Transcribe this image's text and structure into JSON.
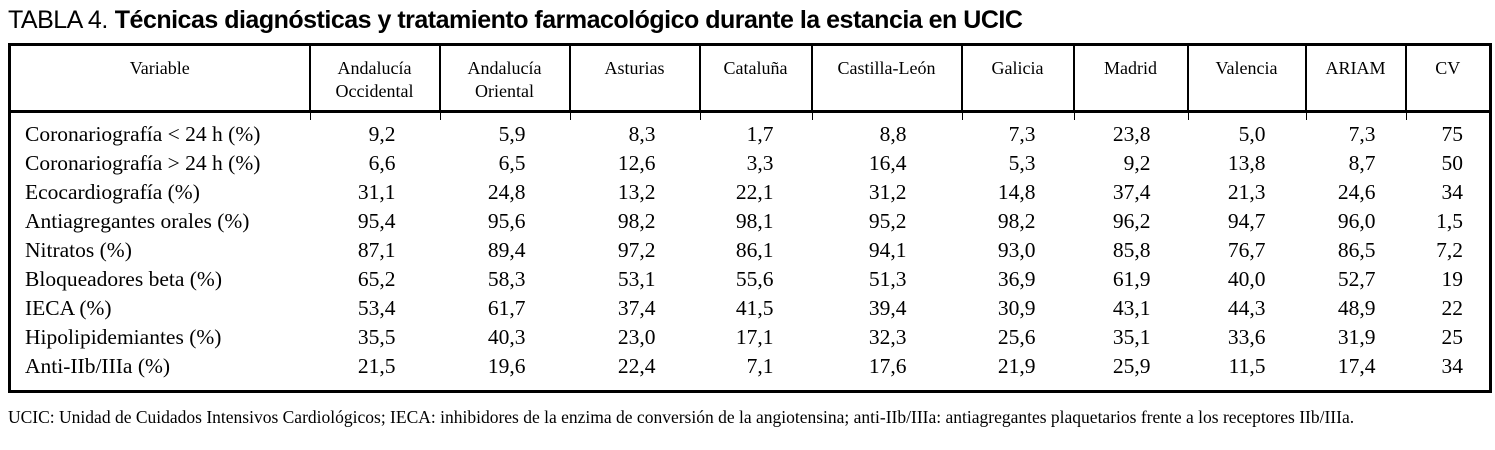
{
  "title": {
    "prefix": "TABLA 4.",
    "text": "Técnicas diagnósticas y tratamiento farmacológico durante la estancia en UCIC"
  },
  "table": {
    "headers": [
      {
        "label": "Variable"
      },
      {
        "label": "Andalucía Occidental",
        "lines": [
          "Andalucía",
          "Occidental"
        ]
      },
      {
        "label": "Andalucía Oriental",
        "lines": [
          "Andalucía",
          "Oriental"
        ]
      },
      {
        "label": "Asturias"
      },
      {
        "label": "Cataluña"
      },
      {
        "label": "Castilla-León"
      },
      {
        "label": "Galicia"
      },
      {
        "label": "Madrid"
      },
      {
        "label": "Valencia"
      },
      {
        "label": "ARIAM"
      },
      {
        "label": "CV"
      }
    ],
    "rows": [
      {
        "label": "Coronariografía < 24 h (%)",
        "values": [
          "9,2",
          "5,9",
          "8,3",
          "1,7",
          "8,8",
          "7,3",
          "23,8",
          "5,0",
          "7,3",
          "75"
        ]
      },
      {
        "label": "Coronariografía > 24 h (%)",
        "values": [
          "6,6",
          "6,5",
          "12,6",
          "3,3",
          "16,4",
          "5,3",
          "9,2",
          "13,8",
          "8,7",
          "50"
        ]
      },
      {
        "label": "Ecocardiografía (%)",
        "values": [
          "31,1",
          "24,8",
          "13,2",
          "22,1",
          "31,2",
          "14,8",
          "37,4",
          "21,3",
          "24,6",
          "34"
        ]
      },
      {
        "label": "Antiagregantes orales (%)",
        "values": [
          "95,4",
          "95,6",
          "98,2",
          "98,1",
          "95,2",
          "98,2",
          "96,2",
          "94,7",
          "96,0",
          "1,5"
        ]
      },
      {
        "label": "Nitratos (%)",
        "values": [
          "87,1",
          "89,4",
          "97,2",
          "86,1",
          "94,1",
          "93,0",
          "85,8",
          "76,7",
          "86,5",
          "7,2"
        ]
      },
      {
        "label": "Bloqueadores beta (%)",
        "values": [
          "65,2",
          "58,3",
          "53,1",
          "55,6",
          "51,3",
          "36,9",
          "61,9",
          "40,0",
          "52,7",
          "19"
        ]
      },
      {
        "label": "IECA (%)",
        "values": [
          "53,4",
          "61,7",
          "37,4",
          "41,5",
          "39,4",
          "30,9",
          "43,1",
          "44,3",
          "48,9",
          "22"
        ]
      },
      {
        "label": "Hipolipidemiantes (%)",
        "values": [
          "35,5",
          "40,3",
          "23,0",
          "17,1",
          "32,3",
          "25,6",
          "35,1",
          "33,6",
          "31,9",
          "25"
        ]
      },
      {
        "label": "Anti-IIb/IIIa (%)",
        "values": [
          "21,5",
          "19,6",
          "22,4",
          "7,1",
          "17,6",
          "21,9",
          "25,9",
          "11,5",
          "17,4",
          "34"
        ]
      }
    ]
  },
  "footnote": "UCIC: Unidad de Cuidados Intensivos Cardiológicos; IECA: inhibidores de la enzima de conversión de la angiotensina; anti-IIb/IIIa: antiagregantes plaquetarios frente a los receptores IIb/IIIa.",
  "colors": {
    "text": "#000000",
    "background": "#ffffff",
    "border": "#000000"
  }
}
